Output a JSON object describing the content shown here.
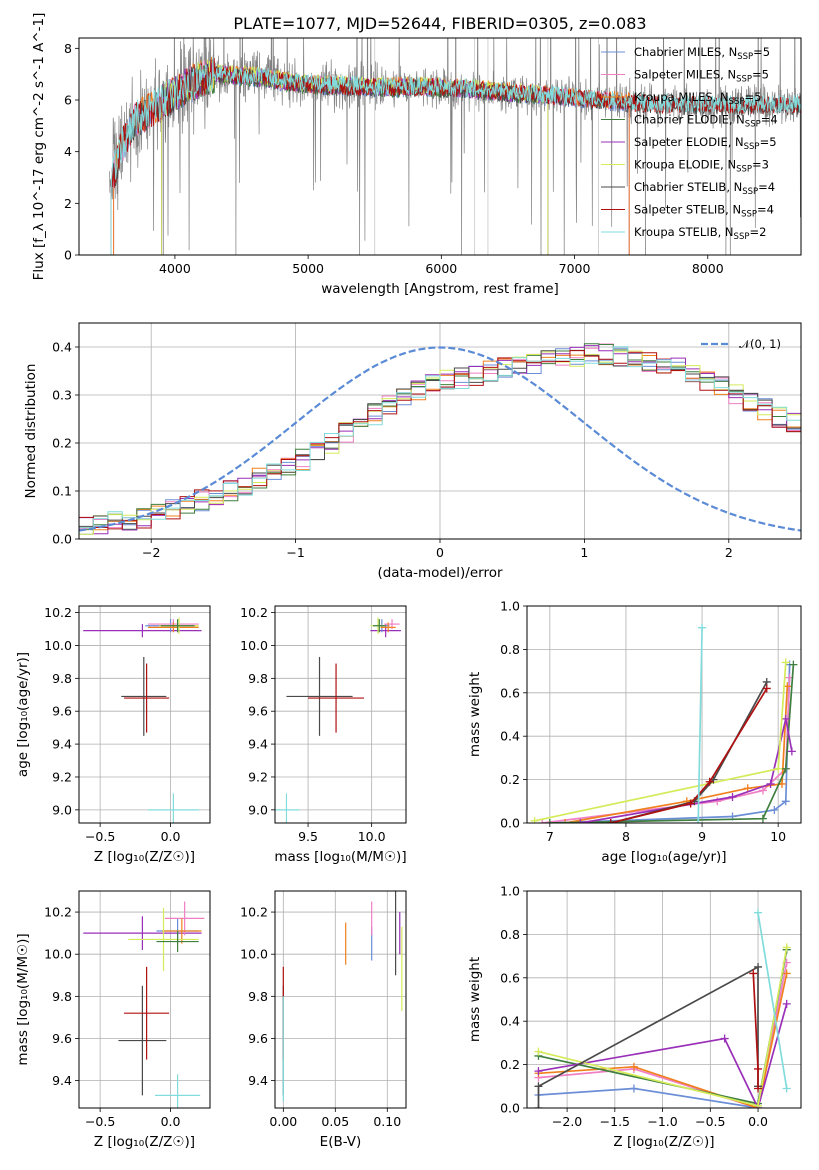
{
  "figure": {
    "title": "PLATE=1077, MJD=52644, FIBERID=0305, z=0.083"
  },
  "colors": {
    "Chabrier MILES": "#6b8ed6",
    "Salpeter MILES": "#f07fc4",
    "Kroupa MILES": "#f0801e",
    "Chabrier ELODIE": "#3f7f3f",
    "Salpeter ELODIE": "#9a2fb8",
    "Kroupa ELODIE": "#d5eb5a",
    "Chabrier STELIB": "#4a4a4a",
    "Salpeter STELIB": "#b01010",
    "Kroupa STELIB": "#82dcdc",
    "data": "#808080"
  },
  "chart_data": [
    {
      "id": "spectrum",
      "type": "line",
      "xlabel": "wavelength [Angstrom, rest frame]",
      "ylabel": "Flux [f_λ 10^-17 erg cm^-2 s^-1 A^-1]",
      "xlim": [
        3280,
        8700
      ],
      "ylim": [
        0,
        8.4
      ],
      "xticks": [
        4000,
        5000,
        6000,
        7000,
        8000
      ],
      "yticks": [
        0,
        2,
        4,
        6,
        8
      ],
      "legend_position": "right",
      "legend": [
        {
          "model": "Chabrier MILES",
          "label": "Chabrier MILES, N",
          "sub": "SSP",
          "suffix": "=5"
        },
        {
          "model": "Salpeter MILES",
          "label": "Salpeter MILES, N",
          "sub": "SSP",
          "suffix": "=5"
        },
        {
          "model": "Kroupa MILES",
          "label": "Kroupa MILES, N",
          "sub": "SSP",
          "suffix": "=5"
        },
        {
          "model": "Chabrier ELODIE",
          "label": "Chabrier ELODIE, N",
          "sub": "SSP",
          "suffix": "=4"
        },
        {
          "model": "Salpeter ELODIE",
          "label": "Salpeter ELODIE, N",
          "sub": "SSP",
          "suffix": "=5"
        },
        {
          "model": "Kroupa ELODIE",
          "label": "Kroupa ELODIE, N",
          "sub": "SSP",
          "suffix": "=3"
        },
        {
          "model": "Chabrier STELIB",
          "label": "Chabrier STELIB, N",
          "sub": "SSP",
          "suffix": "=4"
        },
        {
          "model": "Salpeter STELIB",
          "label": "Salpeter STELIB, N",
          "sub": "SSP",
          "suffix": "=4"
        },
        {
          "model": "Kroupa STELIB",
          "label": "Kroupa STELIB, N",
          "sub": "SSP",
          "suffix": "=2"
        }
      ],
      "continuum_anchors": [
        [
          3520,
          2.8
        ],
        [
          3600,
          4.2
        ],
        [
          3700,
          5.2
        ],
        [
          3900,
          5.9
        ],
        [
          4100,
          6.6
        ],
        [
          4300,
          7.0
        ],
        [
          4600,
          6.9
        ],
        [
          5000,
          6.6
        ],
        [
          5500,
          6.5
        ],
        [
          6000,
          6.5
        ],
        [
          6500,
          6.3
        ],
        [
          7000,
          6.1
        ],
        [
          7400,
          5.9
        ],
        [
          7800,
          5.8
        ],
        [
          8300,
          5.8
        ],
        [
          8700,
          5.8
        ]
      ],
      "model_ranges": {
        "Chabrier MILES": [
          3540,
          7410
        ],
        "Salpeter MILES": [
          3540,
          7410
        ],
        "Kroupa MILES": [
          3540,
          7410
        ],
        "Chabrier ELODIE": [
          3900,
          6800
        ],
        "Salpeter ELODIE": [
          3900,
          6800
        ],
        "Kroupa ELODIE": [
          3900,
          6800
        ],
        "Chabrier STELIB": [
          3520,
          8700
        ],
        "Salpeter STELIB": [
          3520,
          8700
        ],
        "Kroupa STELIB": [
          3520,
          8700
        ]
      },
      "data_range": [
        3510,
        8700
      ],
      "mask_lines_at": [
        5500,
        6250,
        6350,
        6800,
        7180
      ]
    },
    {
      "id": "residuals",
      "type": "histogram",
      "xlabel": "(data-model)/error",
      "ylabel": "Normed distribution",
      "xlim": [
        -2.5,
        2.5
      ],
      "ylim": [
        0,
        0.45
      ],
      "xticks": [
        -2,
        -1,
        0,
        1,
        2
      ],
      "yticks": [
        0.0,
        0.1,
        0.2,
        0.3,
        0.4
      ],
      "bin_width": 0.1,
      "base_profile": [
        0.03,
        0.03,
        0.035,
        0.04,
        0.045,
        0.05,
        0.06,
        0.07,
        0.08,
        0.09,
        0.1,
        0.11,
        0.125,
        0.14,
        0.155,
        0.165,
        0.18,
        0.2,
        0.22,
        0.24,
        0.26,
        0.28,
        0.3,
        0.31,
        0.32,
        0.33,
        0.335,
        0.34,
        0.35,
        0.355,
        0.36,
        0.365,
        0.37,
        0.375,
        0.38,
        0.385,
        0.385,
        0.38,
        0.38,
        0.37,
        0.36,
        0.355,
        0.34,
        0.33,
        0.32,
        0.3,
        0.285,
        0.27,
        0.255,
        0.24,
        0.225,
        0.205,
        0.19,
        0.175,
        0.16,
        0.145,
        0.13,
        0.115,
        0.105,
        0.095,
        0.085,
        0.08,
        0.075,
        0.07,
        0.065,
        0.06,
        0.055,
        0.05,
        0.045,
        0.04
      ],
      "overlay": {
        "name": "𝒩(0, 1)",
        "mu": 0,
        "sigma": 1,
        "color": "#5b8bd6"
      }
    },
    {
      "id": "age-vs-Z",
      "type": "errorbar",
      "xlabel": "Z [log₁₀(Z/Z☉)]",
      "ylabel": "age  [log₁₀(age/yr)]",
      "xlim": [
        -0.65,
        0.28
      ],
      "ylim": [
        8.92,
        10.24
      ],
      "xticks": [
        -0.5,
        0.0
      ],
      "yticks": [
        9.0,
        9.2,
        9.4,
        9.6,
        9.8,
        10.0,
        10.2
      ],
      "points": [
        {
          "model": "Chabrier STELIB",
          "x": -0.19,
          "y": 9.69,
          "xerr": 0.16,
          "yerr": 0.24
        },
        {
          "model": "Salpeter STELIB",
          "x": -0.17,
          "y": 9.68,
          "xerr": 0.16,
          "yerr": 0.21
        },
        {
          "model": "Kroupa STELIB",
          "x": 0.02,
          "y": 9.0,
          "xerr": 0.18,
          "yerr": 0.1
        },
        {
          "model": "Salpeter ELODIE",
          "x": -0.2,
          "y": 10.09,
          "xerr": 0.42,
          "yerr": 0.04
        },
        {
          "model": "Chabrier MILES",
          "x": 0.0,
          "y": 10.12,
          "xerr": 0.18,
          "yerr": 0.04
        },
        {
          "model": "Salpeter MILES",
          "x": 0.02,
          "y": 10.13,
          "xerr": 0.18,
          "yerr": 0.03
        },
        {
          "model": "Kroupa MILES",
          "x": 0.02,
          "y": 10.11,
          "xerr": 0.18,
          "yerr": 0.03
        },
        {
          "model": "Kroupa ELODIE",
          "x": 0.06,
          "y": 10.12,
          "xerr": 0.14,
          "yerr": 0.05
        },
        {
          "model": "Chabrier ELODIE",
          "x": 0.05,
          "y": 10.12,
          "xerr": 0.12,
          "yerr": 0.04
        }
      ]
    },
    {
      "id": "age-vs-mass",
      "type": "errorbar",
      "xlabel": "mass [log₁₀(M/M☉)]",
      "ylabel": "",
      "xlim": [
        9.24,
        10.27
      ],
      "ylim": [
        8.92,
        10.24
      ],
      "xticks": [
        9.5,
        10.0
      ],
      "yticks": [
        9.0,
        9.2,
        9.4,
        9.6,
        9.8,
        10.0,
        10.2
      ],
      "points": [
        {
          "model": "Chabrier STELIB",
          "x": 9.59,
          "y": 9.69,
          "xerr": 0.26,
          "yerr": 0.24
        },
        {
          "model": "Salpeter STELIB",
          "x": 9.72,
          "y": 9.68,
          "xerr": 0.22,
          "yerr": 0.21
        },
        {
          "model": "Kroupa STELIB",
          "x": 9.33,
          "y": 9.0,
          "xerr": 0.1,
          "yerr": 0.1
        },
        {
          "model": "Salpeter ELODIE",
          "x": 10.11,
          "y": 10.09,
          "xerr": 0.12,
          "yerr": 0.04
        },
        {
          "model": "Chabrier MILES",
          "x": 10.08,
          "y": 10.12,
          "xerr": 0.06,
          "yerr": 0.04
        },
        {
          "model": "Salpeter MILES",
          "x": 10.16,
          "y": 10.13,
          "xerr": 0.06,
          "yerr": 0.03
        },
        {
          "model": "Kroupa MILES",
          "x": 10.13,
          "y": 10.11,
          "xerr": 0.06,
          "yerr": 0.03
        },
        {
          "model": "Kroupa ELODIE",
          "x": 10.05,
          "y": 10.12,
          "xerr": 0.06,
          "yerr": 0.05
        },
        {
          "model": "Chabrier ELODIE",
          "x": 10.06,
          "y": 10.12,
          "xerr": 0.05,
          "yerr": 0.04
        }
      ]
    },
    {
      "id": "massweight-vs-age",
      "type": "line",
      "xlabel": "age  [log₁₀(age/yr)]",
      "ylabel": "mass weight",
      "xlim": [
        6.7,
        10.3
      ],
      "ylim": [
        0,
        1
      ],
      "xticks": [
        7,
        8,
        9,
        10
      ],
      "yticks": [
        0.0,
        0.2,
        0.4,
        0.6,
        0.8,
        1.0
      ],
      "series": [
        {
          "model": "Chabrier MILES",
          "x": [
            7.0,
            9.4,
            9.95,
            10.1,
            10.15
          ],
          "y": [
            0.0,
            0.03,
            0.06,
            0.1,
            0.73
          ]
        },
        {
          "model": "Salpeter MILES",
          "x": [
            6.9,
            9.2,
            9.8,
            10.1,
            10.15
          ],
          "y": [
            0.0,
            0.1,
            0.15,
            0.25,
            0.67
          ]
        },
        {
          "model": "Kroupa MILES",
          "x": [
            7.2,
            8.8,
            9.6,
            10.05,
            10.12
          ],
          "y": [
            0.0,
            0.1,
            0.16,
            0.18,
            0.63
          ]
        },
        {
          "model": "Chabrier ELODIE",
          "x": [
            7.0,
            9.8,
            10.1,
            10.2
          ],
          "y": [
            0.0,
            0.02,
            0.25,
            0.73
          ]
        },
        {
          "model": "Salpeter ELODIE",
          "x": [
            7.4,
            9.4,
            9.9,
            10.1,
            10.18
          ],
          "y": [
            0.0,
            0.12,
            0.18,
            0.48,
            0.33
          ]
        },
        {
          "model": "Kroupa ELODIE",
          "x": [
            6.8,
            10.0,
            10.1
          ],
          "y": [
            0.01,
            0.25,
            0.74
          ]
        },
        {
          "model": "Chabrier STELIB",
          "x": [
            7.8,
            8.9,
            9.15,
            9.85
          ],
          "y": [
            0.0,
            0.1,
            0.2,
            0.65
          ]
        },
        {
          "model": "Salpeter STELIB",
          "x": [
            7.8,
            8.85,
            9.1,
            9.85
          ],
          "y": [
            0.0,
            0.09,
            0.19,
            0.62
          ]
        },
        {
          "model": "Kroupa STELIB",
          "x": [
            8.95,
            9.0
          ],
          "y": [
            0.0,
            0.9
          ]
        }
      ]
    },
    {
      "id": "mass-vs-Z",
      "type": "errorbar",
      "xlabel": "Z [log₁₀(Z/Z☉)]",
      "ylabel": "mass [log₁₀(M/M☉)]",
      "xlim": [
        -0.65,
        0.28
      ],
      "ylim": [
        9.27,
        10.3
      ],
      "xticks": [
        -0.5,
        0.0
      ],
      "yticks": [
        9.4,
        9.6,
        9.8,
        10.0,
        10.2
      ],
      "points": [
        {
          "model": "Chabrier STELIB",
          "x": -0.2,
          "y": 9.59,
          "xerr": 0.17,
          "yerr": 0.26
        },
        {
          "model": "Salpeter STELIB",
          "x": -0.17,
          "y": 9.72,
          "xerr": 0.16,
          "yerr": 0.22
        },
        {
          "model": "Kroupa STELIB",
          "x": 0.05,
          "y": 9.33,
          "xerr": 0.16,
          "yerr": 0.1
        },
        {
          "model": "Salpeter ELODIE",
          "x": -0.2,
          "y": 10.1,
          "xerr": 0.42,
          "yerr": 0.08
        },
        {
          "model": "Chabrier MILES",
          "x": 0.05,
          "y": 10.11,
          "xerr": 0.15,
          "yerr": 0.06
        },
        {
          "model": "Salpeter MILES",
          "x": 0.1,
          "y": 10.17,
          "xerr": 0.14,
          "yerr": 0.08
        },
        {
          "model": "Kroupa MILES",
          "x": 0.08,
          "y": 10.11,
          "xerr": 0.14,
          "yerr": 0.06
        },
        {
          "model": "Kroupa ELODIE",
          "x": -0.05,
          "y": 10.07,
          "xerr": 0.25,
          "yerr": 0.15
        },
        {
          "model": "Chabrier ELODIE",
          "x": 0.05,
          "y": 10.06,
          "xerr": 0.15,
          "yerr": 0.05
        }
      ]
    },
    {
      "id": "mass-vs-EBV",
      "type": "errorbar",
      "xlabel": "E(B-V)",
      "ylabel": "",
      "xlim": [
        -0.008,
        0.118
      ],
      "ylim": [
        9.27,
        10.3
      ],
      "xticks": [
        0.0,
        0.05,
        0.1
      ],
      "tick_labels": [
        "0.00",
        "0.05",
        "0.10"
      ],
      "yticks": [
        9.4,
        9.6,
        9.8,
        10.0,
        10.2
      ],
      "points": [
        {
          "model": "Chabrier STELIB",
          "x": 0.0,
          "y": 9.59,
          "xerr": 0.0,
          "yerr": 0.26
        },
        {
          "model": "Salpeter STELIB",
          "x": 0.0,
          "y": 9.72,
          "xerr": 0.0,
          "yerr": 0.22
        },
        {
          "model": "Kroupa STELIB",
          "x": 0.0,
          "y": 9.55,
          "xerr": 0.0,
          "yerr": 0.25
        },
        {
          "model": "Kroupa MILES",
          "x": 0.06,
          "y": 10.05,
          "xerr": 0.0,
          "yerr": 0.1
        },
        {
          "model": "Chabrier MILES",
          "x": 0.085,
          "y": 10.05,
          "xerr": 0.0,
          "yerr": 0.08
        },
        {
          "model": "Salpeter MILES",
          "x": 0.085,
          "y": 10.17,
          "xerr": 0.0,
          "yerr": 0.08
        },
        {
          "model": "Chabrier STELIB",
          "x": 0.108,
          "y": 10.1,
          "xerr": 0.0,
          "yerr": 0.2
        },
        {
          "model": "Salpeter ELODIE",
          "x": 0.112,
          "y": 10.1,
          "xerr": 0.0,
          "yerr": 0.1
        },
        {
          "model": "Kroupa ELODIE",
          "x": 0.114,
          "y": 9.93,
          "xerr": 0.0,
          "yerr": 0.2
        }
      ]
    },
    {
      "id": "massweight-vs-Z",
      "type": "line",
      "xlabel": "Z [log₁₀(Z/Z☉)]",
      "ylabel": "mass weight",
      "xlim": [
        -2.42,
        0.45
      ],
      "ylim": [
        0,
        1
      ],
      "xticks": [
        -2.0,
        -1.5,
        -1.0,
        -0.5,
        0.0
      ],
      "yticks": [
        0.0,
        0.2,
        0.4,
        0.6,
        0.8,
        1.0
      ],
      "series": [
        {
          "model": "Chabrier MILES",
          "x": [
            -2.3,
            -1.3,
            0.0,
            0.3
          ],
          "y": [
            0.06,
            0.09,
            0.0,
            0.73
          ]
        },
        {
          "model": "Salpeter MILES",
          "x": [
            -2.3,
            -1.3,
            0.0,
            0.3
          ],
          "y": [
            0.14,
            0.18,
            0.0,
            0.67
          ]
        },
        {
          "model": "Kroupa MILES",
          "x": [
            -2.3,
            -1.3,
            0.0,
            0.3
          ],
          "y": [
            0.16,
            0.19,
            0.0,
            0.62
          ]
        },
        {
          "model": "Chabrier ELODIE",
          "x": [
            -2.3,
            0.0,
            0.3
          ],
          "y": [
            0.24,
            0.02,
            0.73
          ]
        },
        {
          "model": "Salpeter ELODIE",
          "x": [
            -2.3,
            -0.35,
            0.0,
            0.3
          ],
          "y": [
            0.17,
            0.32,
            0.0,
            0.48
          ]
        },
        {
          "model": "Kroupa ELODIE",
          "x": [
            -2.3,
            0.0,
            0.3
          ],
          "y": [
            0.26,
            0.01,
            0.74
          ]
        },
        {
          "model": "Chabrier STELIB",
          "x": [
            -2.3,
            -2.3,
            0.0,
            0.0
          ],
          "y": [
            0.0,
            0.1,
            0.65,
            0.1
          ]
        },
        {
          "model": "Salpeter STELIB",
          "x": [
            -0.05,
            0.0,
            0.0
          ],
          "y": [
            0.62,
            0.18,
            0.09
          ]
        },
        {
          "model": "Kroupa STELIB",
          "x": [
            0.0,
            0.3
          ],
          "y": [
            0.9,
            0.09
          ]
        }
      ]
    }
  ]
}
